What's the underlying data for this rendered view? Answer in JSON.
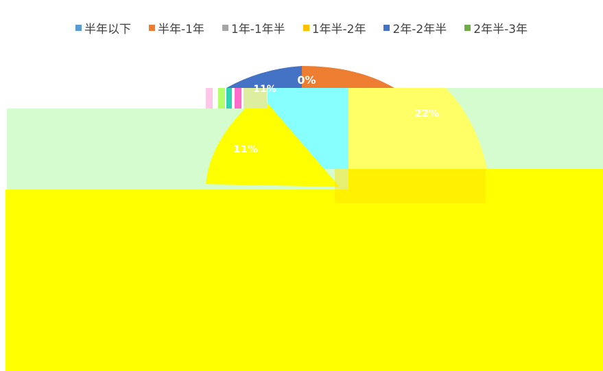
{
  "chart_data": {
    "type": "pie",
    "legend_position": "top",
    "legend": [
      {
        "label": "半年以下",
        "color": "#5B9BD5"
      },
      {
        "label": "半年-1年",
        "color": "#ED7D31"
      },
      {
        "label": "1年-1年半",
        "color": "#A5A5A5"
      },
      {
        "label": "1年半-2年",
        "color": "#FFC000"
      },
      {
        "label": "2年-2年半",
        "color": "#4472C4"
      },
      {
        "label": "2年半-3年",
        "color": "#70AD47"
      }
    ],
    "visible_labels": [
      "0%",
      "11%",
      "22%",
      "11%"
    ],
    "colors": {
      "pale_green_band": "#D4FCCF",
      "yellow_overlay": "#FFFF00",
      "cyan_block": "#88FFFF",
      "light_yellow_slice": "#FFFF66",
      "slice_blue": "#4472C4",
      "slice_orange": "#ED7D31"
    }
  }
}
